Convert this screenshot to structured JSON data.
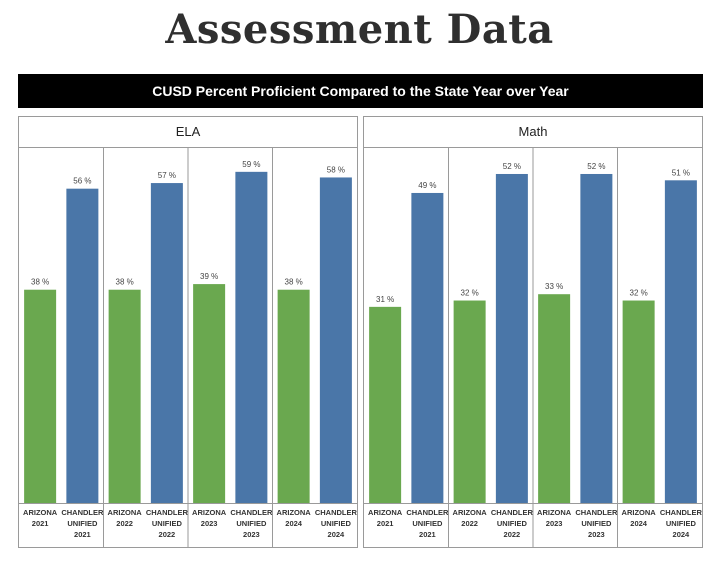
{
  "page_title": "Assessment Data",
  "banner": "CUSD Percent Proficient Compared to the State Year over Year",
  "colors": {
    "state": "#6aa84f",
    "district": "#4a76a8"
  },
  "chart_data": [
    {
      "type": "bar",
      "title": "ELA",
      "categories": [
        [
          "ARIZONA",
          "2021"
        ],
        [
          "CHANDLER",
          "UNIFIED",
          "2021"
        ],
        [
          "ARIZONA",
          "2022"
        ],
        [
          "CHANDLER",
          "UNIFIED",
          "2022"
        ],
        [
          "ARIZONA",
          "2023"
        ],
        [
          "CHANDLER",
          "UNIFIED",
          "2023"
        ],
        [
          "ARIZONA",
          "2024"
        ],
        [
          "CHANDLER",
          "UNIFIED",
          "2024"
        ]
      ],
      "values": [
        38,
        56,
        38,
        57,
        39,
        59,
        38,
        58
      ],
      "value_labels": [
        "38 %",
        "56 %",
        "38 %",
        "57 %",
        "39 %",
        "59 %",
        "38 %",
        "58 %"
      ],
      "ylim": [
        0,
        62
      ],
      "grid": false,
      "legend": "none"
    },
    {
      "type": "bar",
      "title": "Math",
      "categories": [
        [
          "ARIZONA",
          "2021"
        ],
        [
          "CHANDLER",
          "UNIFIED",
          "2021"
        ],
        [
          "ARIZONA",
          "2022"
        ],
        [
          "CHANDLER",
          "UNIFIED",
          "2022"
        ],
        [
          "ARIZONA",
          "2023"
        ],
        [
          "CHANDLER",
          "UNIFIED",
          "2023"
        ],
        [
          "ARIZONA",
          "2024"
        ],
        [
          "CHANDLER",
          "UNIFIED",
          "2024"
        ]
      ],
      "values": [
        31,
        49,
        32,
        52,
        33,
        52,
        32,
        51
      ],
      "value_labels": [
        "31 %",
        "49 %",
        "32 %",
        "52 %",
        "33 %",
        "52 %",
        "32 %",
        "51 %"
      ],
      "ylim": [
        0,
        55
      ],
      "grid": false,
      "legend": "none"
    }
  ]
}
